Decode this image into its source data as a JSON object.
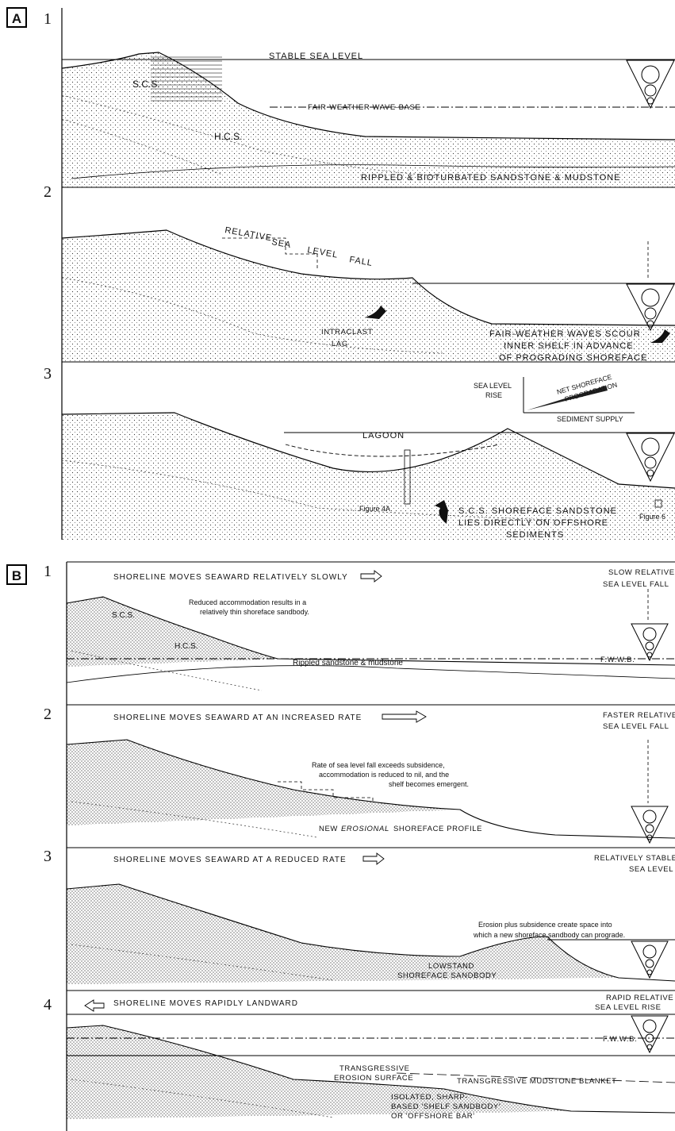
{
  "panel_a": {
    "label": "A",
    "stages": [
      "1",
      "2",
      "3"
    ],
    "s1": {
      "stable_sea_level": "STABLE SEA LEVEL",
      "scs": "S.C.S.",
      "fair_weather_wave_base": "FAIR-WEATHER WAVE-BASE",
      "hcs": "H.C.S.",
      "rippled": "RIPPLED & BIOTURBATED SANDSTONE & MUDSTONE"
    },
    "s2": {
      "relative": "RELATIVE",
      "sea": "SEA",
      "level": "LEVEL",
      "fall": "FALL",
      "intraclast": "INTRACLAST",
      "lag": "LAG",
      "scour1": "FAIR-WEATHER WAVES SCOUR",
      "scour2": "INNER SHELF IN ADVANCE",
      "scour3": "OF PROGRADING SHOREFACE"
    },
    "s3": {
      "sea_level_rise_1": "SEA LEVEL",
      "sea_level_rise_2": "RISE",
      "net_shoreface": "NET SHOREFACE",
      "progradation": "PROGRADATION",
      "sediment_supply": "SEDIMENT SUPPLY",
      "lagoon": "LAGOON",
      "figure_4a": "Figure 4A",
      "figure_6": "Figure 6",
      "scs1": "S.C.S. SHOREFACE SANDSTONE",
      "scs2": "LIES DIRECTLY ON OFFSHORE",
      "scs3": "SEDIMENTS"
    }
  },
  "panel_b": {
    "label": "B",
    "stages": [
      "1",
      "2",
      "3",
      "4"
    ],
    "s1": {
      "header": "SHORELINE MOVES SEAWARD RELATIVELY SLOWLY",
      "right1": "SLOW RELATIVE",
      "right2": "SEA LEVEL FALL",
      "note1": "Reduced accommodation results in a",
      "note2": "relatively thin shoreface sandbody.",
      "scs": "S.C.S.",
      "hcs": "H.C.S.",
      "rippled": "Rippled sandstone & mudstone",
      "fwwb": "F.W.W.B."
    },
    "s2": {
      "header": "SHORELINE MOVES SEAWARD AT AN INCREASED RATE",
      "right1": "FASTER RELATIVE",
      "right2": "SEA LEVEL FALL",
      "note1": "Rate of sea level fall exceeds subsidence,",
      "note2": "accommodation is reduced to nil, and the",
      "note3": "shelf becomes emergent.",
      "new_label": "NEW",
      "erosional": "EROSIONAL",
      "profile": "SHOREFACE PROFILE"
    },
    "s3": {
      "header": "SHORELINE MOVES SEAWARD AT A REDUCED RATE",
      "right1": "RELATIVELY STABLE",
      "right2": "SEA LEVEL",
      "note1": "Erosion plus subsidence create space into",
      "note2": "which a new shoreface sandbody can prograde.",
      "lowstand1": "LOWSTAND",
      "lowstand2": "SHOREFACE SANDBODY"
    },
    "s4": {
      "header": "SHORELINE MOVES RAPIDLY LANDWARD",
      "right1": "RAPID RELATIVE",
      "right2": "SEA LEVEL RISE",
      "fwwb": "F.W.W.B.",
      "trans1": "TRANSGRESSIVE",
      "trans2": "EROSION SURFACE",
      "mudstone": "TRANSGRESSIVE MUDSTONE BLANKET",
      "iso1": "ISOLATED, SHARP-",
      "iso2": "BASED 'SHELF SANDBODY'",
      "iso3": "OR 'OFFSHORE BAR'"
    }
  }
}
